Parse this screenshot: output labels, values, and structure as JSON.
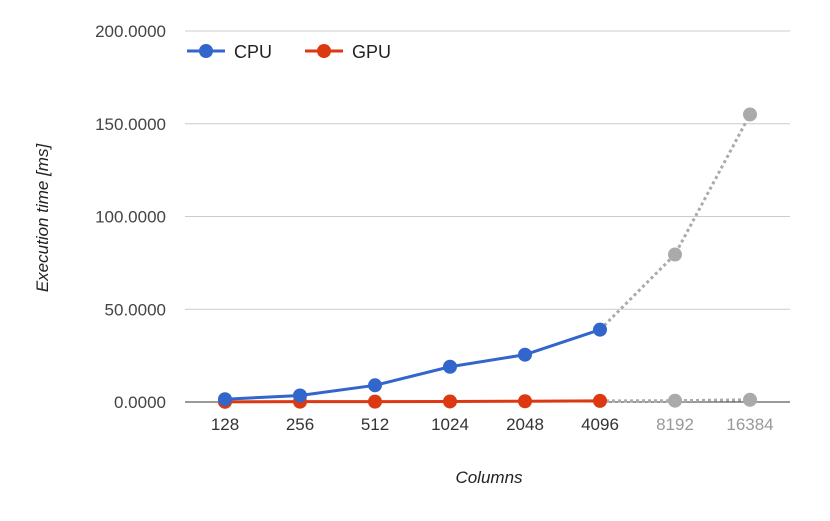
{
  "chart_data": {
    "type": "line",
    "title": "",
    "xlabel": "Columns",
    "ylabel": "Execution time [ms]",
    "categories": [
      "128",
      "256",
      "512",
      "1024",
      "2048",
      "4096",
      "8192",
      "16384"
    ],
    "projected_from_index": 5,
    "ylim": [
      0,
      200
    ],
    "y_ticks": [
      "0.0000",
      "50.0000",
      "100.0000",
      "150.0000",
      "200.0000"
    ],
    "grid": true,
    "legend_position": "top-left",
    "series": [
      {
        "name": "CPU",
        "color": "#3366cc",
        "values": [
          1.5,
          3.5,
          9,
          19,
          25.5,
          39,
          79.5,
          155
        ]
      },
      {
        "name": "GPU",
        "color": "#dc3912",
        "values": [
          0.1,
          0.2,
          0.2,
          0.3,
          0.4,
          0.6,
          0.7,
          1.2
        ]
      }
    ],
    "projection_color": "#aaaaaa",
    "projected_label_color": "#999999"
  }
}
